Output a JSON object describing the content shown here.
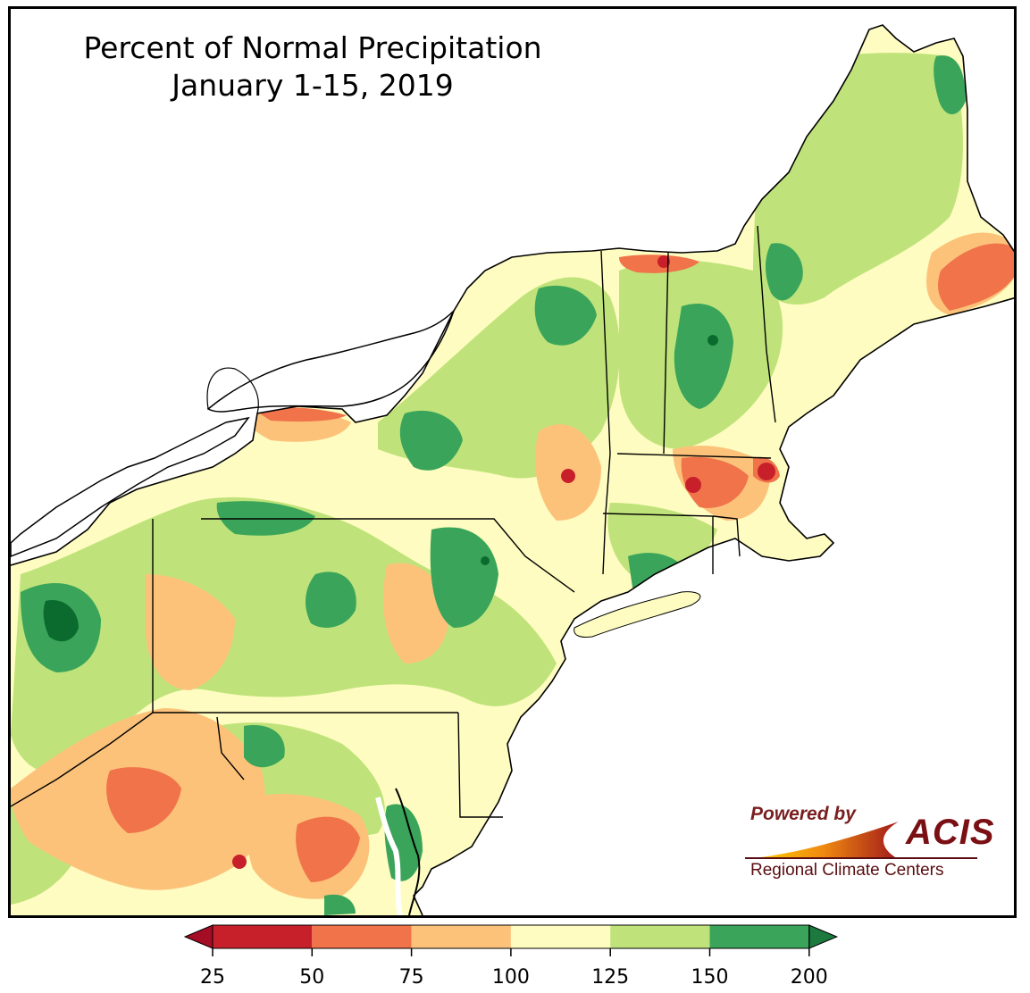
{
  "title": {
    "line1": "Percent of Normal Precipitation",
    "line2": "January 1-15, 2019"
  },
  "branding": {
    "powered_by": "Powered by",
    "acis": "ACIS",
    "regional": "Regional Climate Centers"
  },
  "legend": {
    "ticks": [
      "25",
      "50",
      "75",
      "100",
      "125",
      "150",
      "200"
    ],
    "bins": [
      {
        "from": 25,
        "to": 50,
        "color": "#c8202b"
      },
      {
        "from": 50,
        "to": 75,
        "color": "#f0734a"
      },
      {
        "from": 75,
        "to": 100,
        "color": "#fcc27a"
      },
      {
        "from": 100,
        "to": 125,
        "color": "#fefcc0"
      },
      {
        "from": 125,
        "to": 150,
        "color": "#bfe37a"
      },
      {
        "from": 150,
        "to": 200,
        "color": "#3aa55a"
      }
    ],
    "under_color": "#a50d25",
    "over_color": "#1c7a3e"
  },
  "colors": {
    "water": "#ffffff",
    "darkest_green": "#0b6b2e",
    "state_border": "#000000",
    "county_border": "#8a8a8a"
  }
}
